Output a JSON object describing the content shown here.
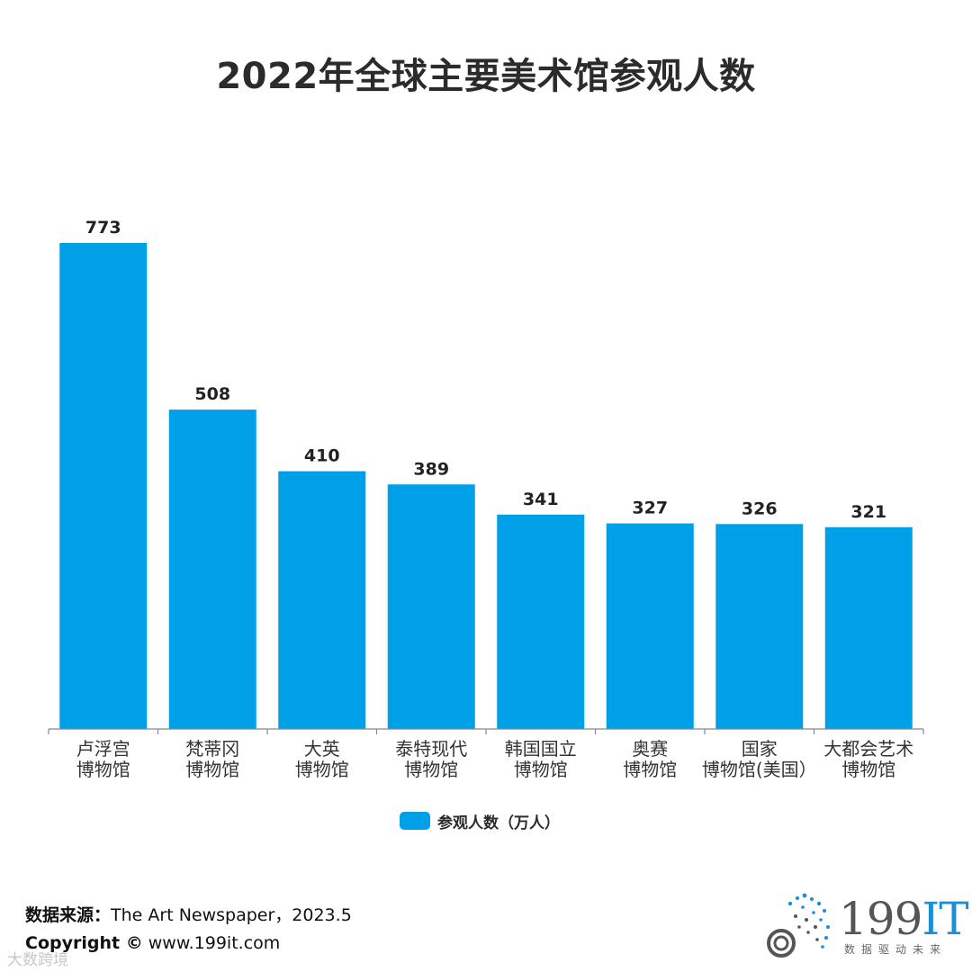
{
  "title": "2022年全球主要美术馆参观人数",
  "chart_data": {
    "type": "bar",
    "categories": [
      [
        "卢浮宫",
        "博物馆"
      ],
      [
        "梵蒂冈",
        "博物馆"
      ],
      [
        "大英",
        "博物馆"
      ],
      [
        "泰特现代",
        "博物馆"
      ],
      [
        "韩国国立",
        "博物馆"
      ],
      [
        "奥赛",
        "博物馆"
      ],
      [
        "国家",
        "博物馆(美国）"
      ],
      [
        "大都会艺术",
        "博物馆"
      ]
    ],
    "series": [
      {
        "name": "参观人数（万人）",
        "values": [
          773,
          508,
          410,
          389,
          341,
          327,
          326,
          321
        ],
        "color": "#00A0E9"
      }
    ],
    "ylim": [
      0,
      773
    ],
    "grid": false,
    "legend_position": "bottom"
  },
  "footer": {
    "source_label": "数据来源：",
    "source_text": "The Art Newspaper，2023.5",
    "copyright_label": "Copyright ©",
    "copyright_text": " www.199it.com"
  },
  "watermark": "大数跨境",
  "logo": {
    "main": "199",
    "accent": "IT",
    "sub": "数据驱动未来"
  }
}
